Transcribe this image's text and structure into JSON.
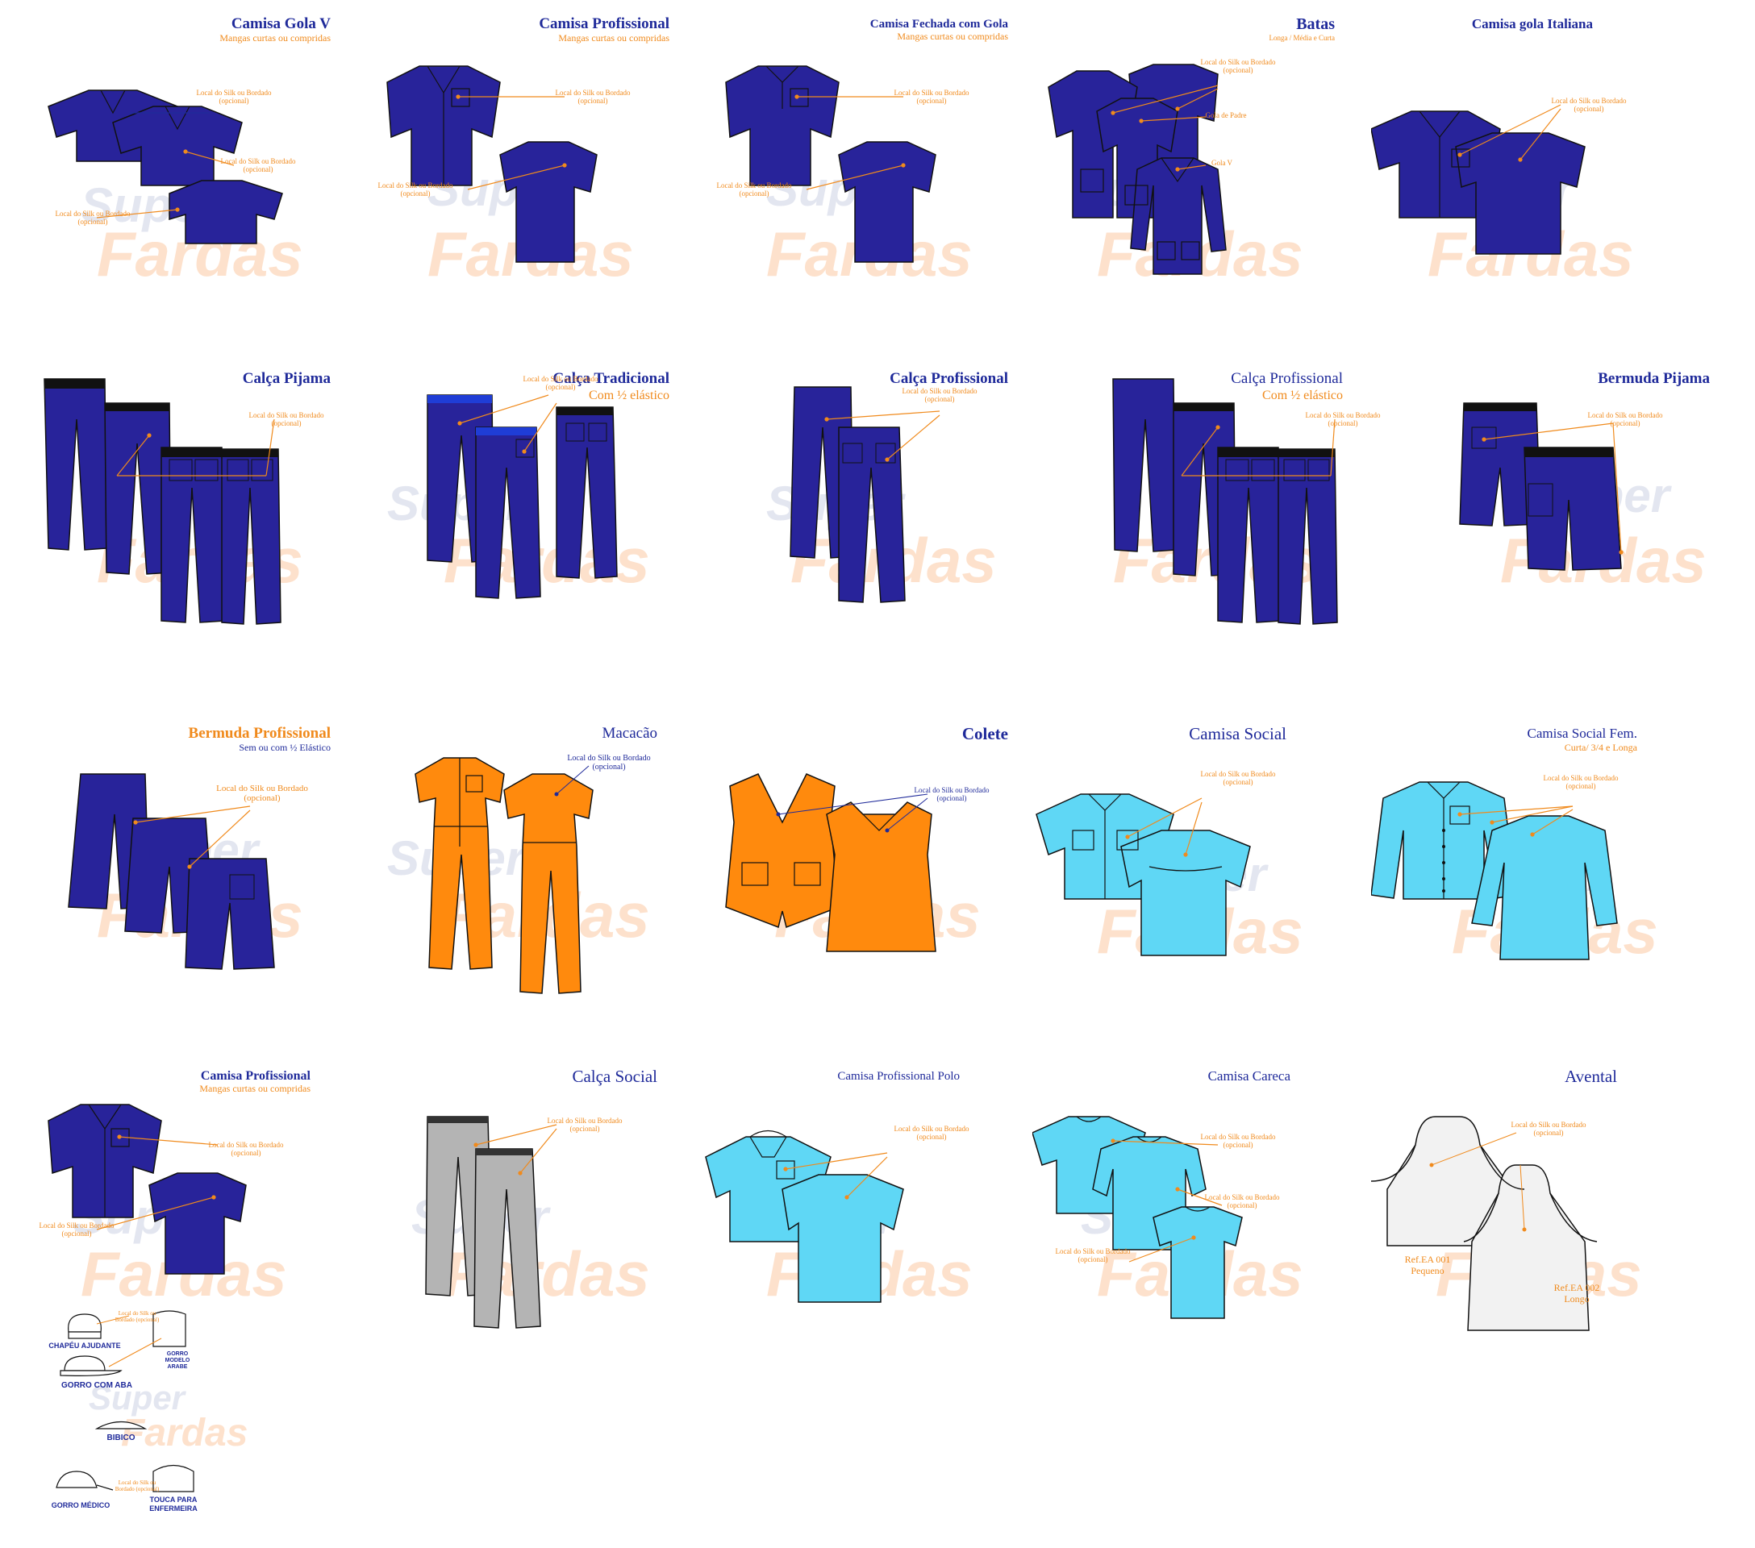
{
  "watermark": {
    "line1": "Super",
    "line2": "Fardas"
  },
  "note_text": "Local do Silk ou Bordado (opcional)",
  "colors": {
    "navy": "#28239a",
    "cyan": "#5fd7f5",
    "orange": "#ff8a0d",
    "gray": "#b4b4b4",
    "title_blue": "#1f2a9a",
    "accent_orange": "#f08a1c"
  },
  "rows": [
    [
      {
        "title": "Camisa Gola V",
        "sub": "Mangas curtas ou compridas"
      },
      {
        "title": "Camisa Profissional",
        "sub": "Mangas curtas ou compridas"
      },
      {
        "title": "Camisa Fechada com Gola",
        "sub": "Mangas curtas ou compridas"
      },
      {
        "title": "Batas",
        "sub": "Longa / Média e Curta",
        "labels": [
          "Gola de Padre",
          "Gola V"
        ]
      },
      {
        "title": "Camisa gola Italiana",
        "sub": ""
      }
    ],
    [
      {
        "title": "Calça Pijama",
        "sub": ""
      },
      {
        "title": "Calça Tradicional",
        "sub": "Com ½ elástico"
      },
      {
        "title": "Calça Profissional",
        "sub": ""
      },
      {
        "title": "Calça Profissional",
        "sub": "Com ½ elástico"
      },
      {
        "title": "Bermuda Pijama",
        "sub": ""
      }
    ],
    [
      {
        "title": "Bermuda Profissional",
        "sub": "Sem ou com ½ Elástico"
      },
      {
        "title": "Macacão",
        "sub": ""
      },
      {
        "title": "Colete",
        "sub": ""
      },
      {
        "title": "Camisa Social",
        "sub": ""
      },
      {
        "title": "Camisa Social Fem.",
        "sub": "Curta/ 3/4 e Longa"
      }
    ],
    [
      {
        "title": "Camisa Profissional",
        "sub": "Mangas curtas ou compridas"
      },
      {
        "title": "Calça Social",
        "sub": ""
      },
      {
        "title": "Camisa Profissional Polo",
        "sub": ""
      },
      {
        "title": "Camisa Careca",
        "sub": ""
      },
      {
        "title": "Avental",
        "sub": "",
        "refs": [
          {
            "code": "Ref.EA 001",
            "size": "Pequeno"
          },
          {
            "code": "Ref.EA 002",
            "size": "Longo"
          }
        ]
      }
    ]
  ],
  "accessories": [
    {
      "label": "CHAPÉU AJUDANTE"
    },
    {
      "label": "GORRO MODELO ARABE"
    },
    {
      "label": "GORRO COM ABA"
    },
    {
      "label": "BIBICO"
    },
    {
      "label": "GORRO MÉDICO"
    },
    {
      "label": "TOUCA PARA ENFERMEIRA"
    }
  ]
}
